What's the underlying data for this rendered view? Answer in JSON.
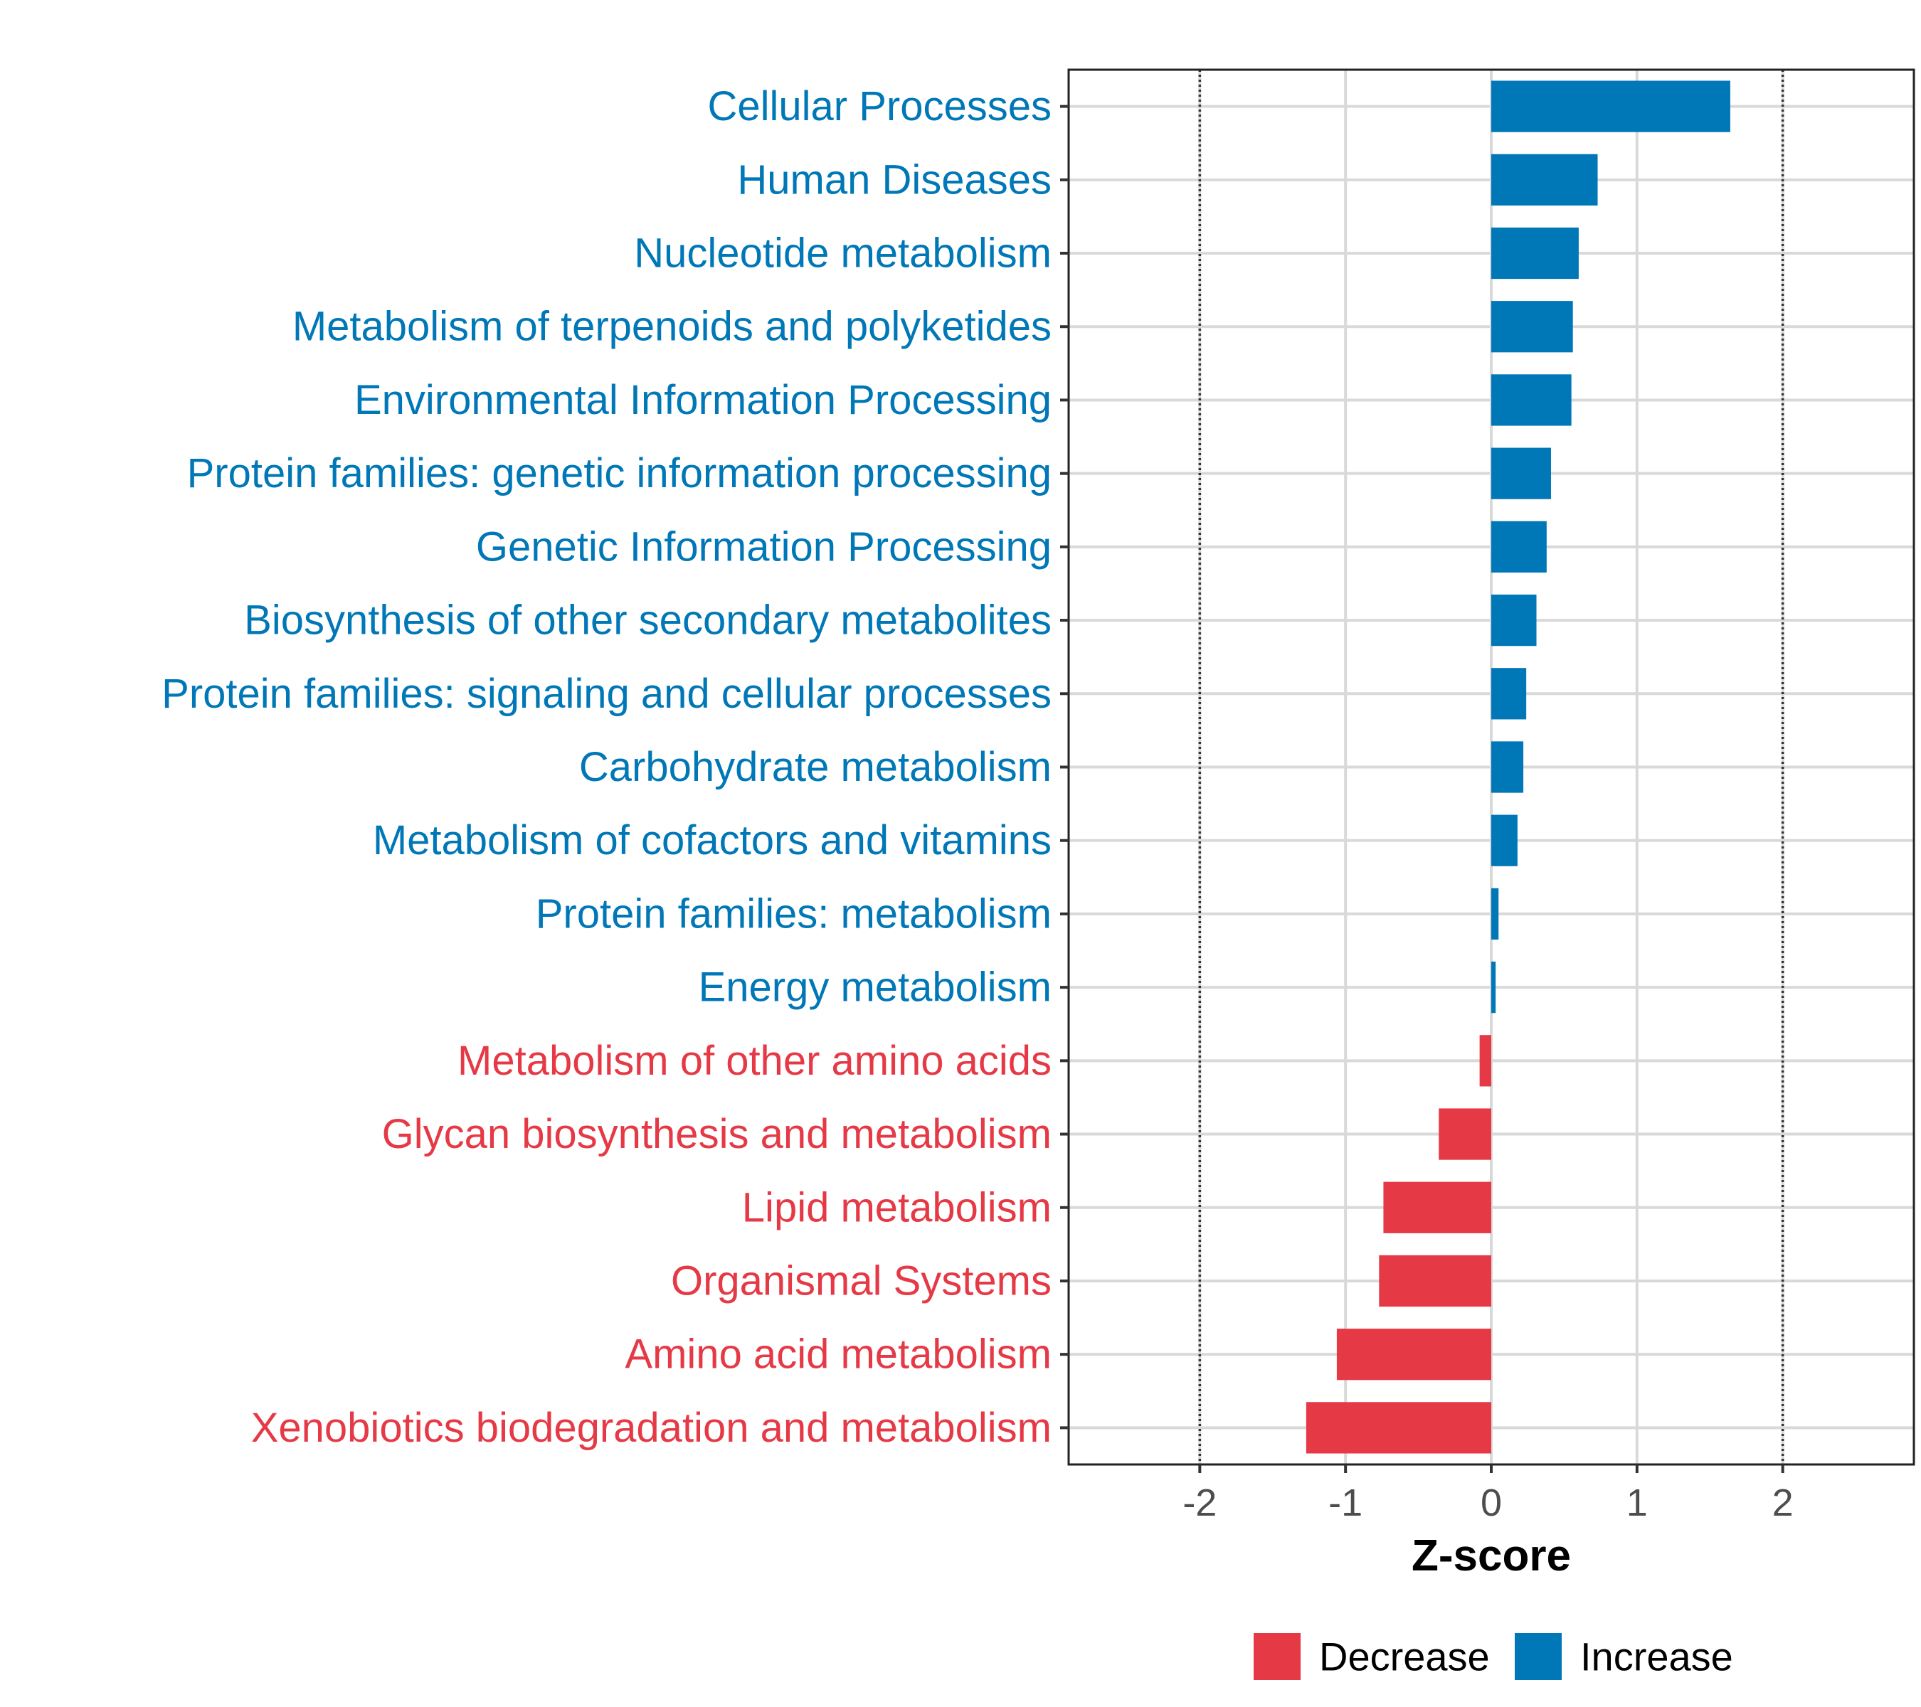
{
  "chart_data": {
    "type": "bar",
    "orientation": "horizontal",
    "title": "",
    "xlabel": "Z-score",
    "ylabel": "",
    "xlim": [
      -2.9,
      2.9
    ],
    "x_ticks": [
      -2,
      -1,
      0,
      1,
      2
    ],
    "x_tick_labels": [
      "-2",
      "-1",
      "0",
      "1",
      "2"
    ],
    "reference_lines": [
      -2,
      2
    ],
    "grid": true,
    "legend_position": "bottom",
    "legend": [
      {
        "name": "Decrease",
        "color": "#E63946"
      },
      {
        "name": "Increase",
        "color": "#0077B6"
      }
    ],
    "categories": [
      "Cellular Processes",
      "Human Diseases",
      "Nucleotide metabolism",
      "Metabolism of terpenoids and polyketides",
      "Environmental Information Processing",
      "Protein families: genetic information processing",
      "Genetic Information Processing",
      "Biosynthesis of other secondary metabolites",
      "Protein families: signaling and cellular processes",
      "Carbohydrate metabolism",
      "Metabolism of cofactors and vitamins",
      "Protein families: metabolism",
      "Energy metabolism",
      "Metabolism of other amino acids",
      "Glycan biosynthesis and metabolism",
      "Lipid metabolism",
      "Organismal Systems",
      "Amino acid metabolism",
      "Xenobiotics biodegradation and metabolism"
    ],
    "values": [
      1.64,
      0.73,
      0.6,
      0.56,
      0.55,
      0.41,
      0.38,
      0.31,
      0.24,
      0.22,
      0.18,
      0.05,
      0.03,
      -0.08,
      -0.36,
      -0.74,
      -0.77,
      -1.06,
      -1.27
    ],
    "groups": [
      "Increase",
      "Increase",
      "Increase",
      "Increase",
      "Increase",
      "Increase",
      "Increase",
      "Increase",
      "Increase",
      "Increase",
      "Increase",
      "Increase",
      "Increase",
      "Decrease",
      "Decrease",
      "Decrease",
      "Decrease",
      "Decrease",
      "Decrease"
    ]
  }
}
